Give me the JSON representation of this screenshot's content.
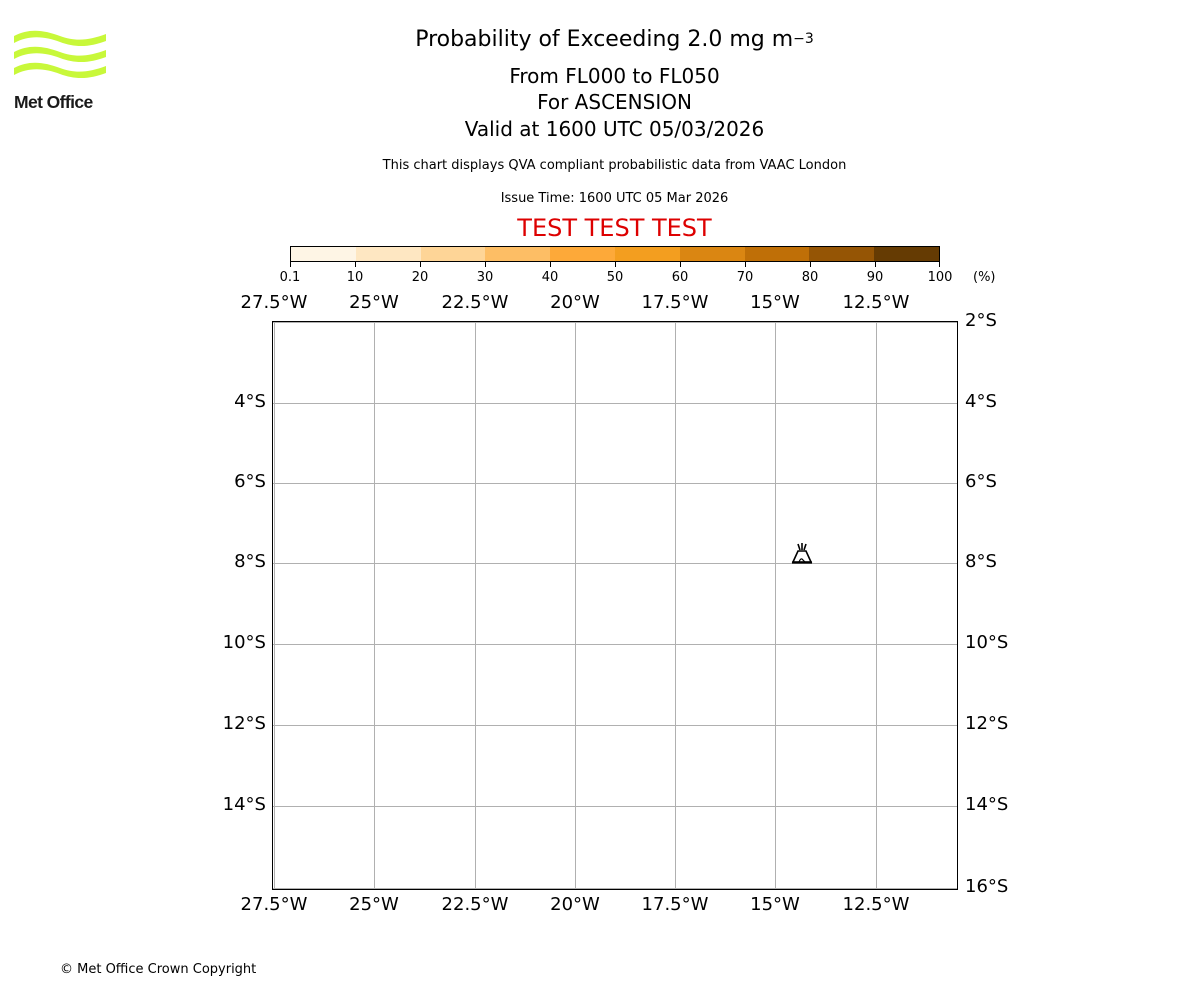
{
  "branding": {
    "logo_text": "Met Office",
    "logo_color": "#c8f83a",
    "copyright": "© Met Office Crown Copyright"
  },
  "header": {
    "title_main": "Probability of Exceeding 2.0 mg m",
    "title_superscript": "−3",
    "level_range": "From FL000 to FL050",
    "location": "For ASCENSION",
    "valid_time": "Valid at 1600 UTC 05/03/2026",
    "description": "This chart displays QVA compliant probabilistic data from VAAC London",
    "issue_time": "Issue Time: 1600 UTC 05 Mar 2026",
    "test_banner": "TEST TEST TEST",
    "test_banner_color": "#dd0000"
  },
  "colorbar": {
    "unit": "(%)",
    "tick_labels": [
      "0.1",
      "10",
      "20",
      "30",
      "40",
      "50",
      "60",
      "70",
      "80",
      "90",
      "100"
    ],
    "colors": [
      "#fef5e5",
      "#fee7c2",
      "#fed597",
      "#fdbe65",
      "#fda939",
      "#f39e1f",
      "#da8612",
      "#bf6f07",
      "#955505",
      "#653b03"
    ]
  },
  "map": {
    "top_lon_labels": [
      "27.5°W",
      "25°W",
      "22.5°W",
      "20°W",
      "17.5°W",
      "15°W",
      "12.5°W"
    ],
    "bottom_lon_labels": [
      "27.5°W",
      "25°W",
      "22.5°W",
      "20°W",
      "17.5°W",
      "15°W",
      "12.5°W"
    ],
    "left_lat_labels": [
      "4°S",
      "6°S",
      "8°S",
      "10°S",
      "12°S",
      "14°S"
    ],
    "right_lat_labels": [
      "2°S",
      "4°S",
      "6°S",
      "8°S",
      "10°S",
      "12°S",
      "14°S",
      "16°S"
    ],
    "volcano_marker": {
      "name": "ASCENSION",
      "icon": "volcano-icon",
      "lon": "14.4°W",
      "lat": "7.9°S"
    }
  },
  "chart_data": {
    "type": "heatmap",
    "title": "Probability of Exceeding 2.0 mg m−3",
    "subtitle": [
      "From FL000 to FL050",
      "For ASCENSION",
      "Valid at 1600 UTC 05/03/2026"
    ],
    "colorbar_levels": [
      0.1,
      10,
      20,
      30,
      40,
      50,
      60,
      70,
      80,
      90,
      100
    ],
    "colorbar_unit": "%",
    "xlim": [
      "27.5°W",
      "11.2°W"
    ],
    "ylim": [
      "16°S",
      "2°S"
    ],
    "x_ticks": [
      "27.5°W",
      "25°W",
      "22.5°W",
      "20°W",
      "17.5°W",
      "15°W",
      "12.5°W"
    ],
    "y_ticks": [
      "2°S",
      "4°S",
      "6°S",
      "8°S",
      "10°S",
      "12°S",
      "14°S",
      "16°S"
    ],
    "grid": true,
    "values": [],
    "annotations": [
      "Volcano marker near 14.4°W, 7.9°S",
      "TEST TEST TEST"
    ]
  }
}
